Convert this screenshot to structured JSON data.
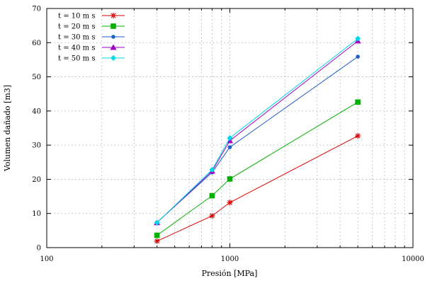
{
  "chart_data": {
    "type": "line",
    "title": "",
    "xlabel": "Presión [MPa]",
    "ylabel": "Volumen dañado [m3]",
    "xscale": "log",
    "xlim": [
      100,
      10000
    ],
    "ylim": [
      0,
      70
    ],
    "xticks": [
      100,
      1000,
      10000
    ],
    "xtick_labels": [
      "100",
      "1000",
      "10000"
    ],
    "yticks": [
      0,
      10,
      20,
      30,
      40,
      50,
      60,
      70
    ],
    "ytick_labels": [
      "0",
      "10",
      "20",
      "30",
      "40",
      "50",
      "60",
      "70"
    ],
    "grid": true,
    "legend_position": "top-left",
    "x": [
      400,
      800,
      1000,
      5000
    ],
    "series": [
      {
        "name": "t = 10 m s",
        "color": "#dd0000",
        "marker": "star",
        "values": [
          1.9,
          9.3,
          13.2,
          32.7
        ]
      },
      {
        "name": "t = 20 m s",
        "color": "#00b000",
        "marker": "square",
        "values": [
          3.6,
          15.2,
          20.1,
          42.6
        ]
      },
      {
        "name": "t = 30 m s",
        "color": "#1f5fc8",
        "marker": "dot",
        "values": [
          7.4,
          22.0,
          29.4,
          55.9
        ]
      },
      {
        "name": "t = 40 m s",
        "color": "#a000c8",
        "marker": "triangle",
        "values": [
          7.3,
          22.4,
          31.3,
          60.5
        ]
      },
      {
        "name": "t = 50 m s",
        "color": "#00d8e8",
        "marker": "diamond",
        "values": [
          7.3,
          22.8,
          32.1,
          61.2
        ]
      }
    ]
  }
}
